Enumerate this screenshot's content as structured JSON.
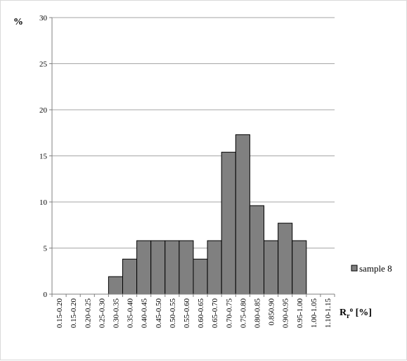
{
  "chart_data": {
    "type": "bar",
    "categories": [
      "0.15-0.20",
      "0.15-0.20",
      "0.20-0.25",
      "0.25-0.30",
      "0.30-0.35",
      "0.35-0.40",
      "0.40-0.45",
      "0.45-0.50",
      "0.50-0.55",
      "0.55-0.60",
      "0.60-0.65",
      "0.65-0.70",
      "0.70-0.75",
      "0.75-0.80",
      "0.80-0.85",
      "0.850.90",
      "0.90-0.95",
      "0.95-1.00",
      "1.00-1.05",
      "1.10-1.15"
    ],
    "series": [
      {
        "name": "sample 8",
        "values": [
          0,
          0,
          0,
          0,
          1.9,
          3.8,
          5.8,
          5.8,
          5.8,
          5.8,
          3.8,
          5.8,
          15.4,
          17.3,
          9.6,
          5.8,
          7.7,
          5.8,
          0,
          0
        ]
      }
    ],
    "ylabel": "%",
    "xlabel_main": "R",
    "xlabel_sub": "r",
    "xlabel_sup": "o",
    "xlabel_tail": " [%]",
    "ylim": [
      0,
      30
    ],
    "yticks": [
      0,
      5,
      10,
      15,
      20,
      25,
      30
    ],
    "grid": true,
    "legend": "right",
    "colors": {
      "bar_fill": "#808080",
      "bar_stroke": "#000000",
      "grid": "#a6a6a6"
    }
  }
}
